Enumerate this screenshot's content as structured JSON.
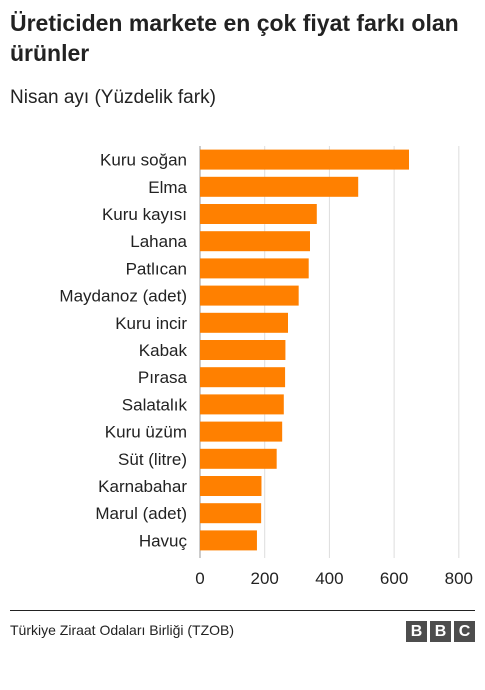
{
  "header": {
    "title": "Üreticiden markete en çok fiyat farkı olan ürünler",
    "subtitle": "Nisan ayı (Yüzdelik fark)"
  },
  "footer": {
    "source": "Türkiye Ziraat Odaları Birliği (TZOB)",
    "logo_letters": [
      "B",
      "B",
      "C"
    ]
  },
  "colors": {
    "bar": "#ff8000",
    "grid": "#dddddd",
    "text": "#222222"
  },
  "chart_data": {
    "type": "bar",
    "orientation": "horizontal",
    "categories": [
      "Kuru soğan",
      "Elma",
      "Kuru kayısı",
      "Lahana",
      "Patlıcan",
      "Maydanoz (adet)",
      "Kuru incir",
      "Kabak",
      "Pırasa",
      "Salatalık",
      "Kuru üzüm",
      "Süt (litre)",
      "Karnabahar",
      "Marul (adet)",
      "Havuç"
    ],
    "values": [
      646,
      489,
      361,
      340,
      336,
      305,
      272,
      264,
      263,
      259,
      254,
      237,
      190,
      189,
      176
    ],
    "xlim": [
      0,
      850
    ],
    "xticks": [
      0,
      200,
      400,
      600,
      800
    ],
    "grid": true
  }
}
